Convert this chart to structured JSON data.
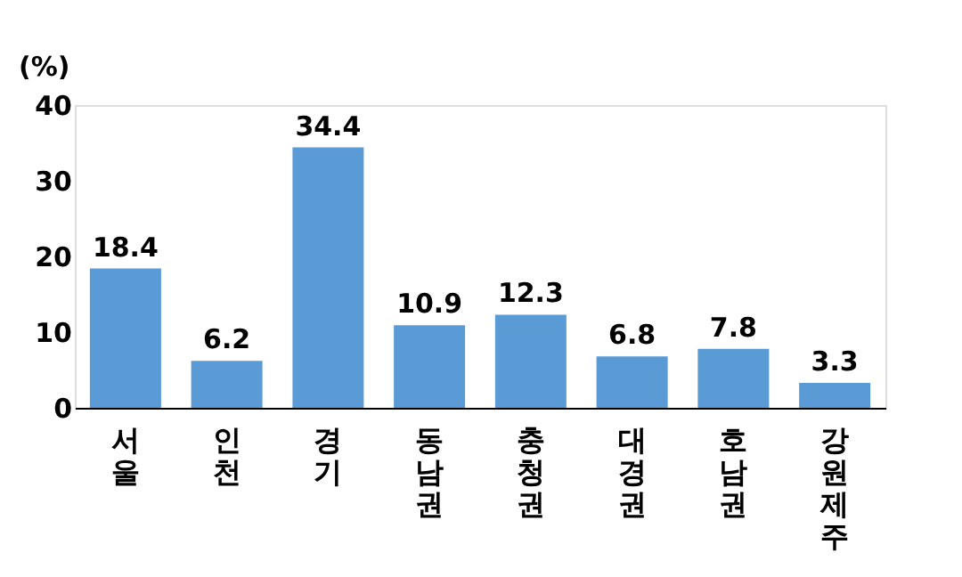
{
  "chart_data": {
    "type": "bar",
    "ylabel": "(%)",
    "categories": [
      "서울",
      "인천",
      "경기",
      "동남권",
      "충청권",
      "대경권",
      "호남권",
      "강원제주"
    ],
    "values": [
      18.4,
      6.2,
      34.4,
      10.9,
      12.3,
      6.8,
      7.8,
      3.3
    ],
    "color": "#5b9bd5",
    "ylim": [
      0,
      40
    ],
    "yticks": [
      0,
      10,
      20,
      30,
      40
    ],
    "grid": false,
    "data_labels": true
  }
}
